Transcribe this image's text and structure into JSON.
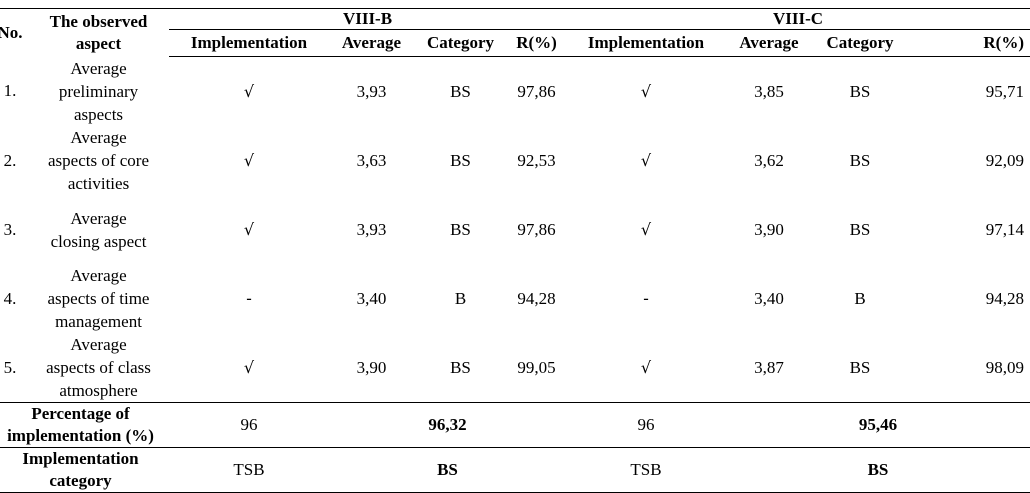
{
  "header": {
    "no": "No.",
    "aspect": "The observed aspect",
    "groups": [
      "VIII-B",
      "VIII-C"
    ],
    "subcols": [
      "Implementation",
      "Average",
      "Category",
      "R(%)"
    ]
  },
  "rows": [
    {
      "no": "1.",
      "aspect_lines": [
        "Average",
        "preliminary",
        "aspects"
      ],
      "b": {
        "impl": "√",
        "avg": "3,93",
        "cat": "BS",
        "r": "97,86"
      },
      "c": {
        "impl": "√",
        "avg": "3,85",
        "cat": "BS",
        "r": "95,71"
      }
    },
    {
      "no": "2.",
      "aspect_lines": [
        "Average",
        "aspects of core",
        "activities"
      ],
      "b": {
        "impl": "√",
        "avg": "3,63",
        "cat": "BS",
        "r": "92,53"
      },
      "c": {
        "impl": "√",
        "avg": "3,62",
        "cat": "BS",
        "r": "92,09"
      }
    },
    {
      "no": "3.",
      "aspect_lines": [
        "Average",
        "closing aspect"
      ],
      "b": {
        "impl": "√",
        "avg": "3,93",
        "cat": "BS",
        "r": "97,86"
      },
      "c": {
        "impl": "√",
        "avg": "3,90",
        "cat": "BS",
        "r": "97,14"
      }
    },
    {
      "no": "4.",
      "aspect_lines": [
        "Average",
        "aspects of time",
        "management"
      ],
      "b": {
        "impl": "-",
        "avg": "3,40",
        "cat": "B",
        "r": "94,28"
      },
      "c": {
        "impl": "-",
        "avg": "3,40",
        "cat": "B",
        "r": "94,28"
      }
    },
    {
      "no": "5.",
      "aspect_lines": [
        "Average",
        "aspects of class",
        "atmosphere"
      ],
      "b": {
        "impl": "√",
        "avg": "3,90",
        "cat": "BS",
        "r": "99,05"
      },
      "c": {
        "impl": "√",
        "avg": "3,87",
        "cat": "BS",
        "r": "98,09"
      }
    }
  ],
  "summary": {
    "percentage": {
      "label_lines": [
        "Percentage of",
        "implementation (%)"
      ],
      "b_impl": "96",
      "b_value": "96,32",
      "c_impl": "96",
      "c_value": "95,46"
    },
    "category": {
      "label_lines": [
        "Implementation",
        "category"
      ],
      "b_impl": "TSB",
      "b_value": "BS",
      "c_impl": "TSB",
      "c_value": "BS"
    }
  }
}
